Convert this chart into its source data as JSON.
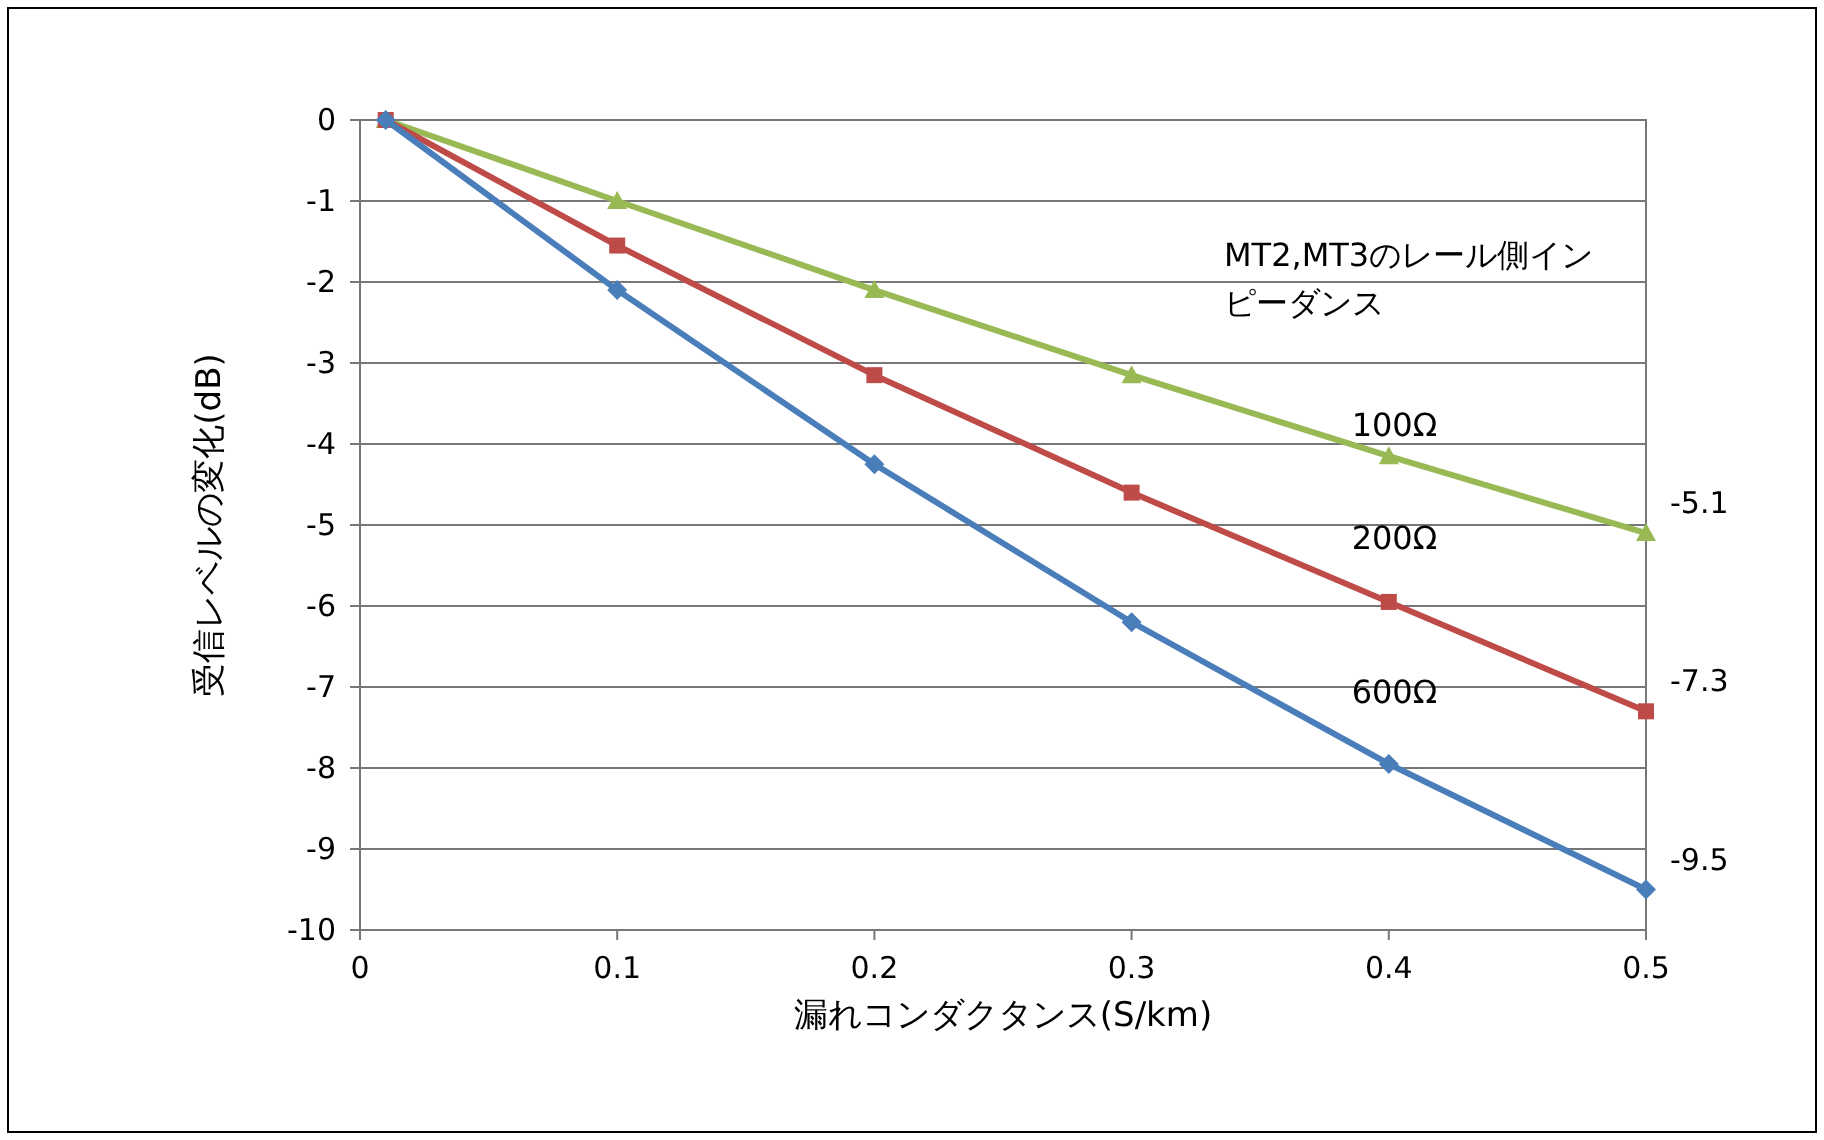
{
  "chart_data": {
    "type": "line",
    "xlabel": "漏れコンダクタンス(S/km)",
    "ylabel": "受信レベルの変化(dB)",
    "legend_title": "MT2,MT3のレール側インピーダンス",
    "x": [
      0.01,
      0.1,
      0.2,
      0.3,
      0.4,
      0.5
    ],
    "series": [
      {
        "name": "100Ω",
        "color": "#98b954",
        "marker": "triangle",
        "values": [
          0,
          -1.0,
          -2.1,
          -3.15,
          -4.15,
          -5.1
        ]
      },
      {
        "name": "200Ω",
        "color": "#be4b48",
        "marker": "square",
        "values": [
          0,
          -1.55,
          -3.15,
          -4.6,
          -5.95,
          -7.3
        ]
      },
      {
        "name": "600Ω",
        "color": "#4a7ebb",
        "marker": "diamond",
        "values": [
          0,
          -2.1,
          -4.25,
          -6.2,
          -7.95,
          -9.5
        ]
      }
    ],
    "xlim": [
      0,
      0.5
    ],
    "xticks": [
      0,
      0.1,
      0.2,
      0.3,
      0.4,
      0.5
    ],
    "ylim": [
      -10,
      0
    ],
    "yticks": [
      0,
      -1,
      -2,
      -3,
      -4,
      -5,
      -6,
      -7,
      -8,
      -9,
      -10
    ],
    "grid": "y",
    "annotations": [
      "-5.1",
      "-7.3",
      "-9.5"
    ]
  }
}
